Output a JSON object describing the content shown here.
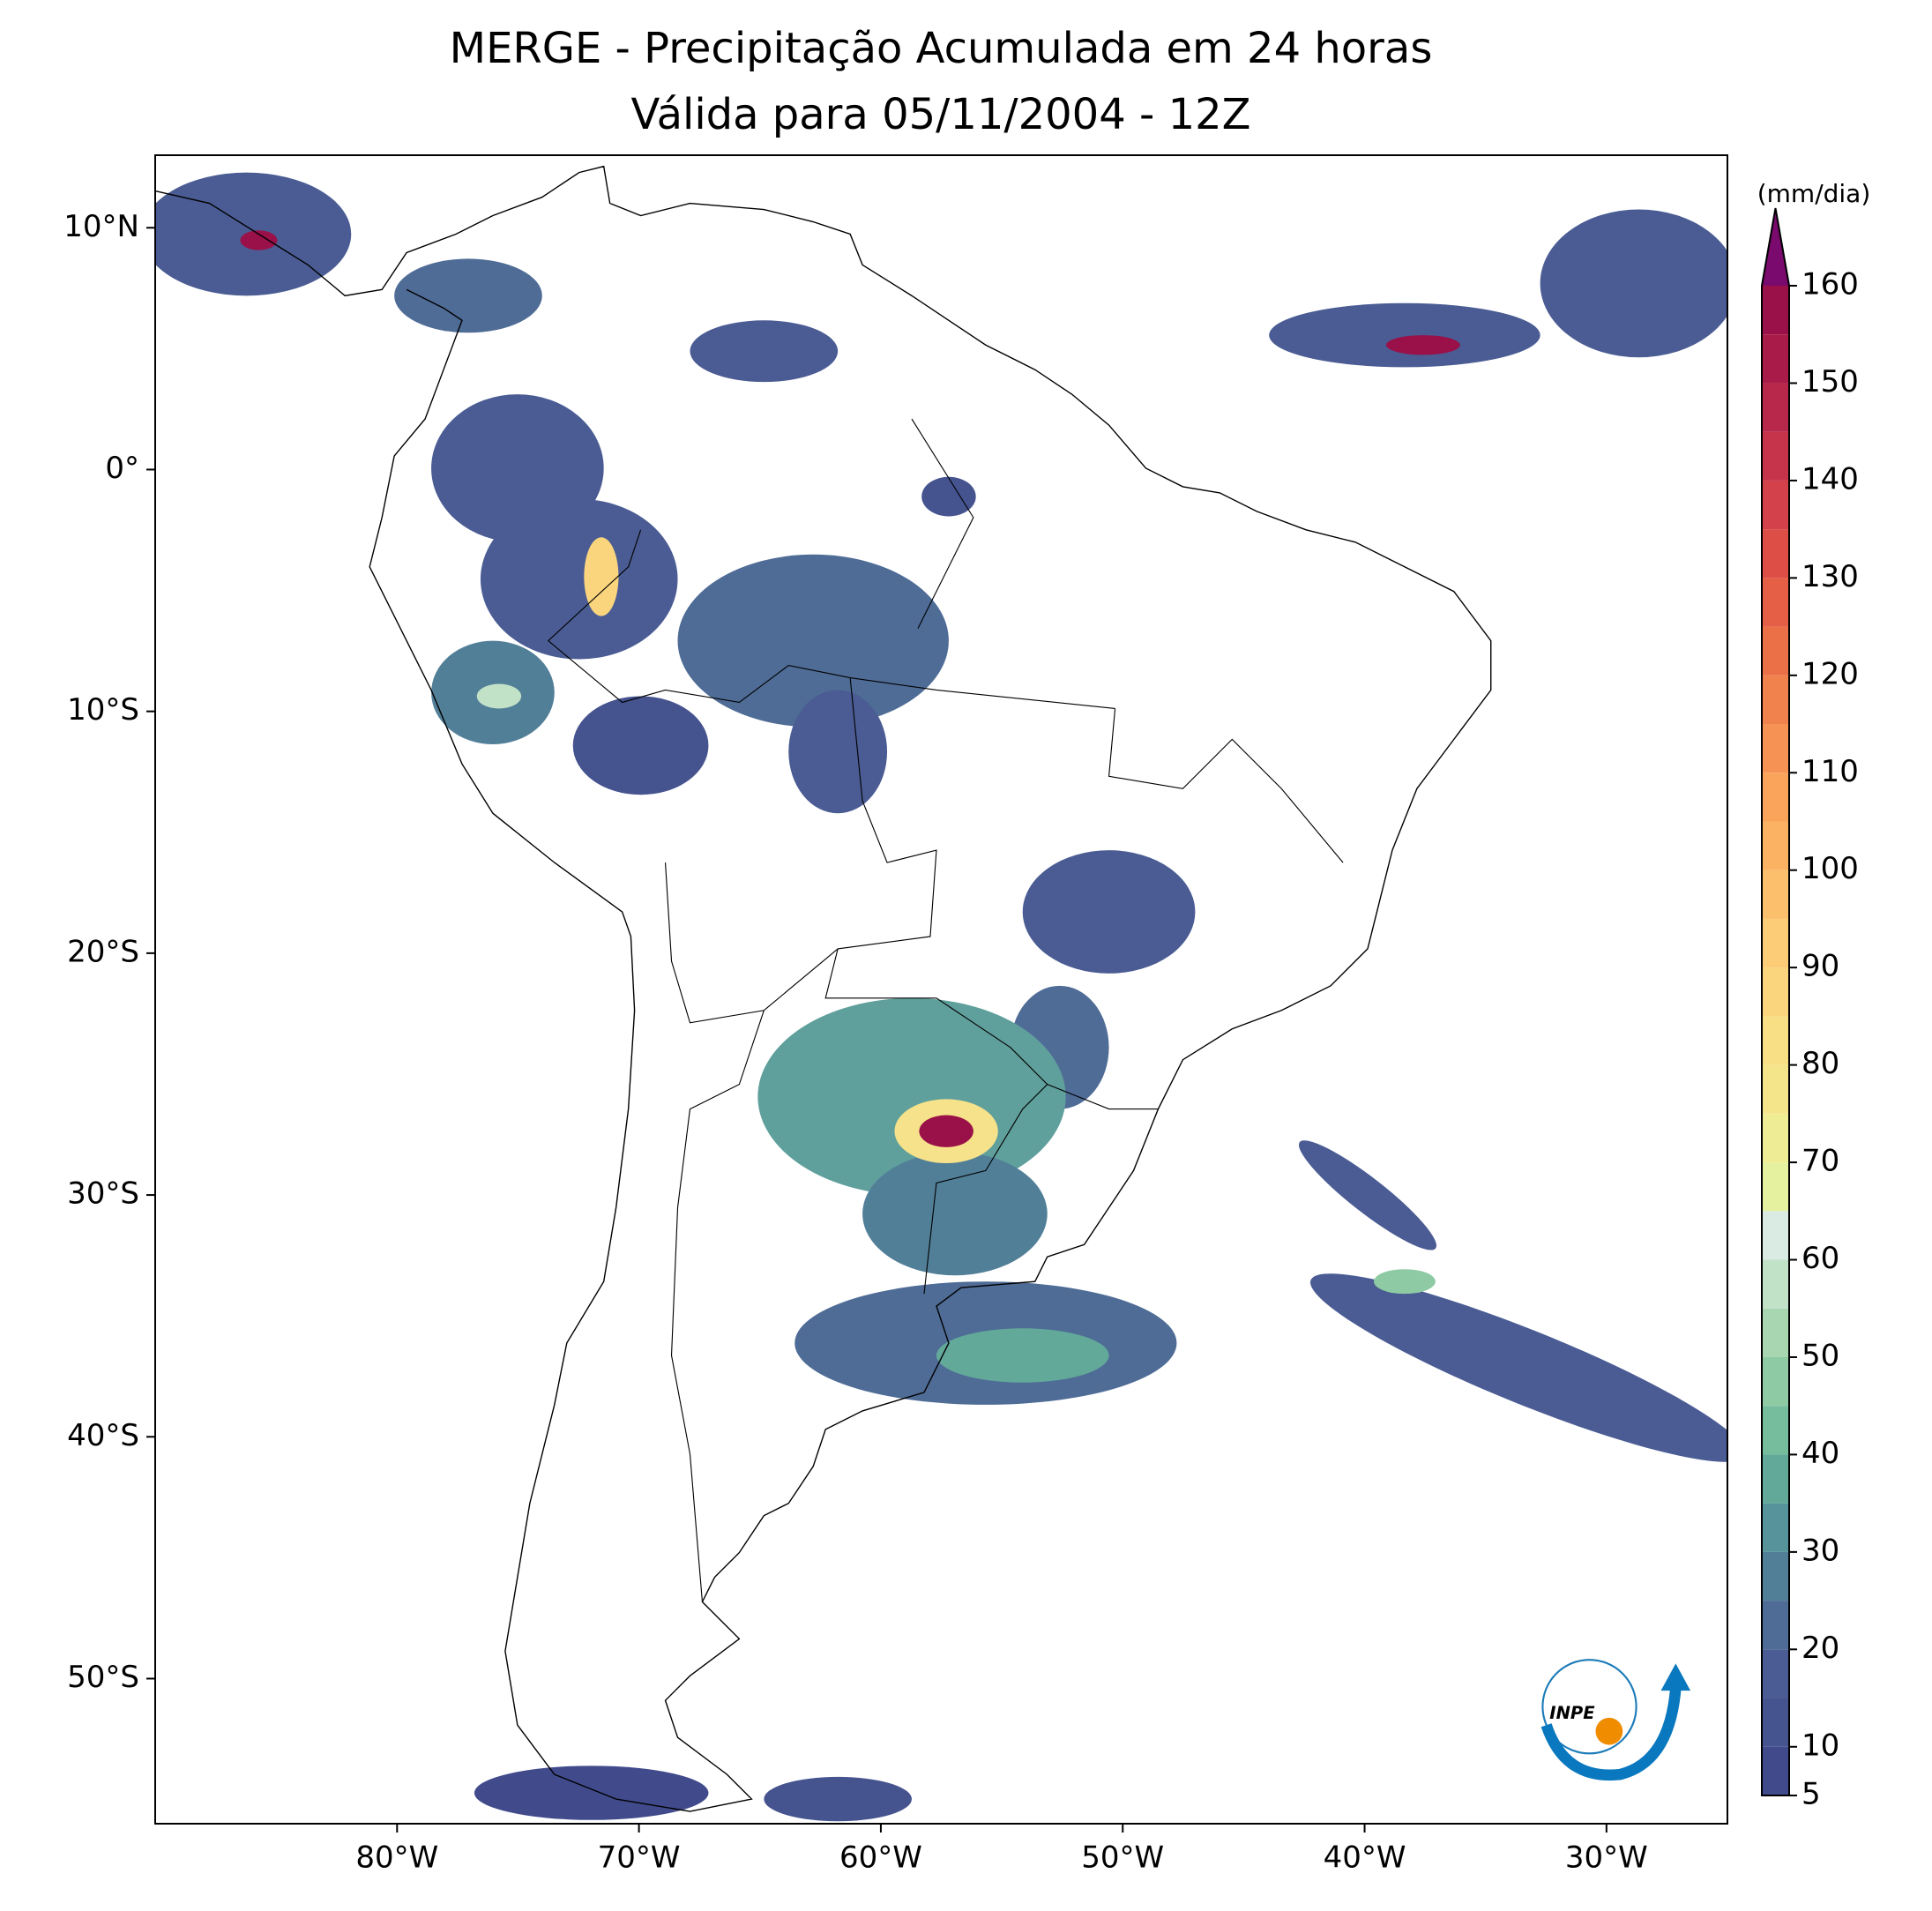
{
  "title": [
    "MERGE - Precipitação Acumulada em 24 horas",
    "Válida para 05/11/2004 - 12Z"
  ],
  "map": {
    "xlim": [
      -90,
      -25
    ],
    "ylim": [
      -56,
      13
    ],
    "xticks": [
      {
        "value": -80,
        "label": "80°W"
      },
      {
        "value": -70,
        "label": "70°W"
      },
      {
        "value": -60,
        "label": "60°W"
      },
      {
        "value": -50,
        "label": "50°W"
      },
      {
        "value": -40,
        "label": "40°W"
      },
      {
        "value": -30,
        "label": "30°W"
      }
    ],
    "yticks": [
      {
        "value": 10,
        "label": "10°N"
      },
      {
        "value": 0,
        "label": "0°"
      },
      {
        "value": -10,
        "label": "10°S"
      },
      {
        "value": -20,
        "label": "20°S"
      },
      {
        "value": -30,
        "label": "30°S"
      },
      {
        "value": -40,
        "label": "40°S"
      },
      {
        "value": -50,
        "label": "50°S"
      }
    ]
  },
  "colorbar": {
    "label": "(mm/dia)",
    "levels": [
      5,
      10,
      15,
      20,
      25,
      30,
      35,
      40,
      45,
      50,
      55,
      60,
      65,
      70,
      75,
      80,
      85,
      90,
      95,
      100,
      105,
      110,
      115,
      120,
      125,
      130,
      135,
      140,
      145,
      150,
      155,
      160
    ],
    "colors": [
      "#414b8c",
      "#45538f",
      "#4a5c93",
      "#4f6c96",
      "#527f98",
      "#56939a",
      "#62a99a",
      "#75bd9d",
      "#8ecaa3",
      "#a8d6b0",
      "#c2e2c8",
      "#d9ebe2",
      "#e6f1a0",
      "#eeed95",
      "#f4e58b",
      "#f8de85",
      "#fbd57e",
      "#fdcc76",
      "#fcc06c",
      "#fbb263",
      "#f9a35b",
      "#f69354",
      "#f2824d",
      "#ec7047",
      "#e55f46",
      "#dd4e47",
      "#d3414a",
      "#c6344b",
      "#b8284b",
      "#a91c4a",
      "#9a1048"
    ],
    "extend": "max",
    "extend_color": "#7a0a6e",
    "ticks": [
      5,
      10,
      20,
      30,
      40,
      50,
      60,
      70,
      80,
      90,
      100,
      110,
      120,
      130,
      140,
      150,
      160
    ]
  },
  "logo": "INPE"
}
